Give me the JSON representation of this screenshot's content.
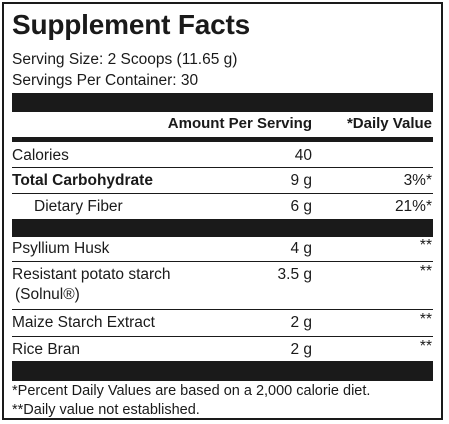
{
  "title": "Supplement Facts",
  "serving_size": "Serving Size: 2 Scoops (11.65 g)",
  "servings_per_container": "Servings Per Container: 30",
  "header": {
    "amount": "Amount Per Serving",
    "daily_value": "*Daily Value"
  },
  "rows": [
    {
      "name": "Calories",
      "amount": "40",
      "dv": ""
    },
    {
      "name": "Total Carbohydrate",
      "amount": "9 g",
      "dv": "3%*"
    },
    {
      "name": "Dietary Fiber",
      "amount": "6 g",
      "dv": "21%*"
    },
    {
      "name": "Psyllium Husk",
      "amount": "4 g",
      "dv": "**"
    },
    {
      "name": "Resistant potato starch",
      "name2": "(Solnul®)",
      "amount": "3.5 g",
      "dv": "**"
    },
    {
      "name": "Maize Starch Extract",
      "amount": "2 g",
      "dv": "**"
    },
    {
      "name": "Rice Bran",
      "amount": "2 g",
      "dv": "**"
    }
  ],
  "footnotes": [
    "*Percent Daily Values are based on a 2,000 calorie diet.",
    "**Daily value not established."
  ]
}
